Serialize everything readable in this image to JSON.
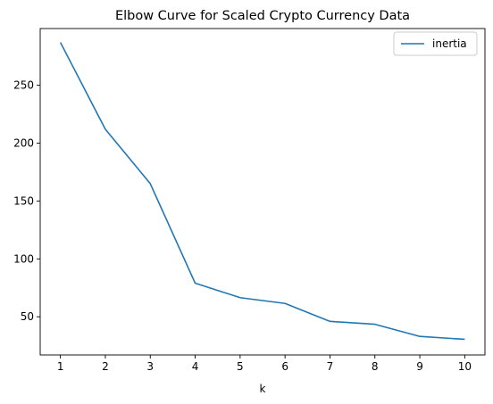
{
  "chart_data": {
    "type": "line",
    "title": "Elbow Curve for Scaled Crypto Currency Data",
    "xlabel": "k",
    "ylabel": "",
    "x": [
      1,
      2,
      3,
      4,
      5,
      6,
      7,
      8,
      9,
      10
    ],
    "xticks": [
      1,
      2,
      3,
      4,
      5,
      6,
      7,
      8,
      9,
      10
    ],
    "yticks": [
      50,
      100,
      150,
      200,
      250
    ],
    "xlim": [
      0.55,
      10.45
    ],
    "ylim": [
      17,
      299
    ],
    "grid": false,
    "legend_position": "top-right",
    "series": [
      {
        "name": "inertia",
        "color": "#1f77b4",
        "values": [
          287,
          212,
          165,
          79,
          66.5,
          61.5,
          46,
          43.5,
          33,
          30.5
        ]
      }
    ]
  }
}
